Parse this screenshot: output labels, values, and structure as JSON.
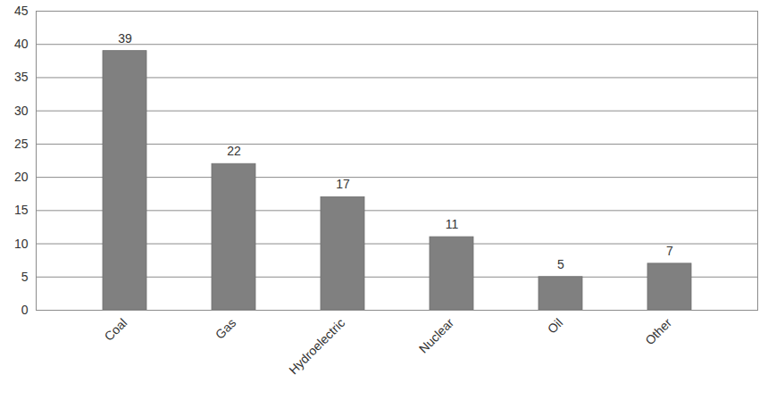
{
  "chart_data": {
    "type": "bar",
    "categories": [
      "Coal",
      "Gas",
      "Hydroelectric",
      "Nuclear",
      "Oil",
      "Other"
    ],
    "values": [
      39,
      22,
      17,
      11,
      5,
      7
    ],
    "color": "#808080",
    "ylim": [
      0,
      45
    ],
    "yticks": [
      0,
      5,
      10,
      15,
      20,
      25,
      30,
      35,
      40,
      45
    ],
    "grid": true,
    "data_labels": true
  }
}
